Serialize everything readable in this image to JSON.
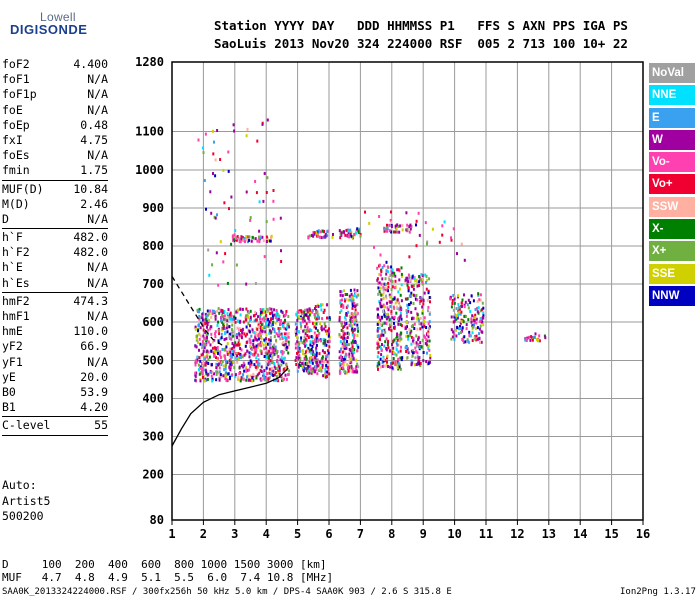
{
  "logo": {
    "top": "Lowell",
    "main": "DIGISONDE"
  },
  "header": {
    "line1": "Station YYYY DAY   DDD HHMMSS P1   FFS S AXN PPS IGA PS",
    "line2": "SaoLuis 2013 Nov20 324 224000 RSF  005 2 713 100 10+ 22"
  },
  "params": [
    {
      "label": "foF2",
      "value": "4.400"
    },
    {
      "label": "foF1",
      "value": "N/A"
    },
    {
      "label": "foF1p",
      "value": "N/A"
    },
    {
      "label": "foE",
      "value": "N/A"
    },
    {
      "label": "foEp",
      "value": "0.48"
    },
    {
      "label": "fxI",
      "value": "4.75"
    },
    {
      "label": "foEs",
      "value": "N/A"
    },
    {
      "label": "fmin",
      "value": "1.75"
    },
    {
      "sep": true
    },
    {
      "label": "MUF(D)",
      "value": "10.84"
    },
    {
      "label": "M(D)",
      "value": "2.46"
    },
    {
      "label": "D",
      "value": "N/A"
    },
    {
      "sep": true
    },
    {
      "label": "h`F",
      "value": "482.0"
    },
    {
      "label": "h`F2",
      "value": "482.0"
    },
    {
      "label": "h`E",
      "value": "N/A"
    },
    {
      "label": "h`Es",
      "value": "N/A"
    },
    {
      "sep": true
    },
    {
      "label": "hmF2",
      "value": "474.3"
    },
    {
      "label": "hmF1",
      "value": "N/A"
    },
    {
      "label": "hmE",
      "value": "110.0"
    },
    {
      "label": "yF2",
      "value": "66.9"
    },
    {
      "label": "yF1",
      "value": "N/A"
    },
    {
      "label": "yE",
      "value": "20.0"
    },
    {
      "label": "B0",
      "value": "53.9"
    },
    {
      "label": "B1",
      "value": "4.20"
    },
    {
      "sep": true
    },
    {
      "label": "C-level",
      "value": "55"
    },
    {
      "sep": true
    }
  ],
  "auto": {
    "line1": "Auto:",
    "line2": "Artist5",
    "line3": "500200"
  },
  "legend": [
    {
      "label": "NoVal",
      "color": "#a0a0a0"
    },
    {
      "label": "NNE",
      "color": "#00e0ff"
    },
    {
      "label": "E",
      "color": "#3aa0f0"
    },
    {
      "label": "W",
      "color": "#a000a0"
    },
    {
      "label": "Vo-",
      "color": "#ff40b0"
    },
    {
      "label": "Vo+",
      "color": "#f00030"
    },
    {
      "label": "SSW",
      "color": "#ffb0a0"
    },
    {
      "label": "X-",
      "color": "#008000"
    },
    {
      "label": "X+",
      "color": "#70b040"
    },
    {
      "label": "SSE",
      "color": "#d0d000"
    },
    {
      "label": "NNW",
      "color": "#0000c0"
    }
  ],
  "chart_data": {
    "type": "scatter",
    "x_ticks": [
      1,
      2,
      3,
      4,
      5,
      6,
      7,
      8,
      9,
      10,
      11,
      12,
      13,
      14,
      15,
      16
    ],
    "y_ticks": [
      80,
      200,
      300,
      400,
      500,
      600,
      700,
      800,
      900,
      1000,
      1100,
      1280
    ],
    "xlim": [
      1,
      16
    ],
    "ylim": [
      80,
      1280
    ],
    "grid": true,
    "legend_position": "right",
    "profile_curve": [
      [
        1.0,
        275
      ],
      [
        1.3,
        320
      ],
      [
        1.6,
        360
      ],
      [
        2.0,
        390
      ],
      [
        2.5,
        410
      ],
      [
        3.0,
        420
      ],
      [
        3.5,
        430
      ],
      [
        4.0,
        440
      ],
      [
        4.4,
        455
      ],
      [
        4.7,
        480
      ]
    ],
    "dashed_curve": [
      [
        1.0,
        720
      ],
      [
        1.3,
        680
      ],
      [
        1.6,
        640
      ],
      [
        1.9,
        600
      ],
      [
        2.1,
        575
      ],
      [
        2.3,
        555
      ],
      [
        2.6,
        540
      ]
    ],
    "clusters": [
      {
        "x": [
          1.7,
          4.7
        ],
        "y": [
          450,
          640
        ],
        "n": 900
      },
      {
        "x": [
          4.9,
          5.6
        ],
        "y": [
          470,
          640
        ],
        "n": 220
      },
      {
        "x": [
          5.5,
          6.0
        ],
        "y": [
          460,
          650
        ],
        "n": 120
      },
      {
        "x": [
          6.3,
          6.9
        ],
        "y": [
          470,
          690
        ],
        "n": 240
      },
      {
        "x": [
          7.5,
          8.3
        ],
        "y": [
          480,
          760
        ],
        "n": 300
      },
      {
        "x": [
          8.4,
          9.2
        ],
        "y": [
          490,
          730
        ],
        "n": 230
      },
      {
        "x": [
          9.8,
          10.9
        ],
        "y": [
          550,
          680
        ],
        "n": 160
      },
      {
        "x": [
          12.2,
          12.9
        ],
        "y": [
          555,
          575
        ],
        "n": 25
      },
      {
        "x": [
          2.9,
          4.2
        ],
        "y": [
          815,
          830
        ],
        "n": 60
      },
      {
        "x": [
          5.3,
          6.1
        ],
        "y": [
          825,
          845
        ],
        "n": 40
      },
      {
        "x": [
          6.3,
          7.0
        ],
        "y": [
          825,
          850
        ],
        "n": 40
      },
      {
        "x": [
          7.7,
          8.6
        ],
        "y": [
          840,
          860
        ],
        "n": 40
      },
      {
        "x": [
          1.8,
          4.5
        ],
        "y": [
          700,
          1150
        ],
        "n": 70
      },
      {
        "x": [
          7.0,
          11.0
        ],
        "y": [
          760,
          900
        ],
        "n": 30
      }
    ]
  },
  "dmuf": {
    "line1": "D     100  200  400  600  800 1000 1500 3000 [km]",
    "line2": "MUF   4.7  4.8  4.9  5.1  5.5  6.0  7.4 10.8 [MHz]"
  },
  "footer": {
    "left": "SAA0K_2013324224000.RSF / 300fx256h 50 kHz 5.0 km / DPS-4 SAA0K 903 / 2.6 S 315.8 E",
    "right": "Ion2Png 1.3.17"
  }
}
